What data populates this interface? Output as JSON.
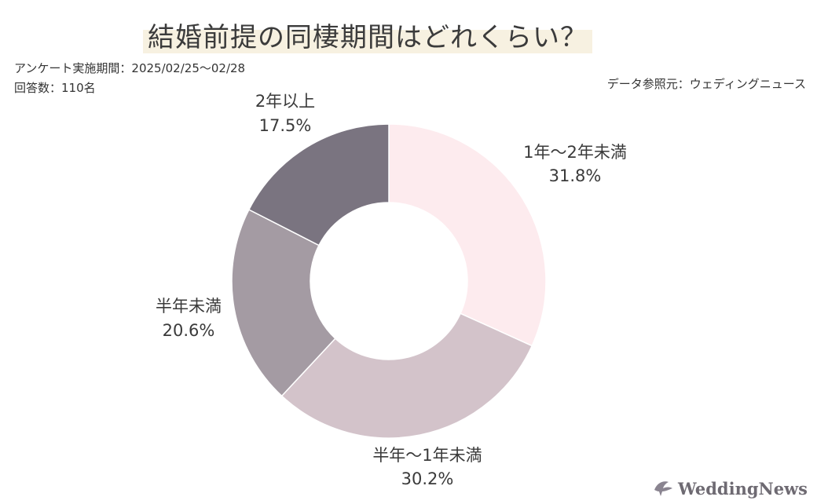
{
  "title": "結婚前提の同棲期間はどれくらい？",
  "survey_period": "アンケート実施期間：2025/02/25〜02/28",
  "respondents": "回答数：110名",
  "source": "データ参照元：ウェディングニュース",
  "logo_text": "WeddingNews",
  "colors": {
    "slice_1": "#fdebee",
    "slice_2": "#d3c3ca",
    "slice_3": "#a49ba3",
    "slice_4": "#7a7480",
    "title_highlight": "#f7f1e1"
  },
  "chart_data": {
    "type": "pie",
    "style": "donut",
    "title": "結婚前提の同棲期間はどれくらい？",
    "slices": [
      {
        "label": "1年〜2年未満",
        "value": 31.8,
        "value_label": "31.8%"
      },
      {
        "label": "半年〜1年未満",
        "value": 30.2,
        "value_label": "30.2%"
      },
      {
        "label": "半年未満",
        "value": 20.6,
        "value_label": "20.6%"
      },
      {
        "label": "2年以上",
        "value": 17.5,
        "value_label": "17.5%"
      }
    ]
  }
}
